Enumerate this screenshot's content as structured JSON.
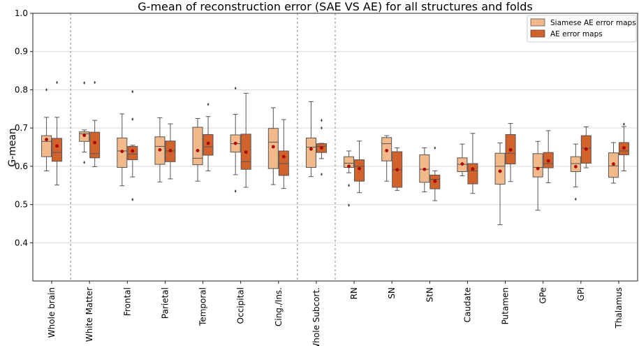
{
  "chart_data": {
    "type": "box",
    "title": "G-mean of reconstruction error (SAE VS AE) for all structures and folds",
    "xlabel": "",
    "ylabel": "G-mean",
    "ylim": [
      0.3,
      1.0
    ],
    "yticks": [
      0.4,
      0.5,
      0.6,
      0.7,
      0.8,
      0.9,
      1.0
    ],
    "grid": "horizontal",
    "legend_position": "top-right",
    "categories": [
      "Whole brain",
      "White Matter",
      "Frontal",
      "Parietal",
      "Temporal",
      "Occipital",
      "Cing./Ins.",
      "Whole Subcort.",
      "RN",
      "SN",
      "StN",
      "Caudate",
      "Putamen",
      "GPe",
      "GPi",
      "Thalamus"
    ],
    "group_separators_after": [
      0,
      6,
      7
    ],
    "series": [
      {
        "name": "Siamese AE error maps",
        "color": "#f2b98a",
        "boxes": [
          {
            "whislo": 0.588,
            "q1": 0.625,
            "med": 0.665,
            "q3": 0.68,
            "whishi": 0.728,
            "mean": 0.67,
            "fliers": [
              0.8
            ]
          },
          {
            "whislo": 0.637,
            "q1": 0.665,
            "med": 0.685,
            "q3": 0.69,
            "whishi": 0.695,
            "mean": 0.681,
            "fliers": [
              0.818,
              0.61
            ]
          },
          {
            "whislo": 0.549,
            "q1": 0.597,
            "med": 0.64,
            "q3": 0.674,
            "whishi": 0.737,
            "mean": 0.639,
            "fliers": []
          },
          {
            "whislo": 0.559,
            "q1": 0.605,
            "med": 0.652,
            "q3": 0.677,
            "whishi": 0.727,
            "mean": 0.643,
            "fliers": []
          },
          {
            "whislo": 0.561,
            "q1": 0.604,
            "med": 0.621,
            "q3": 0.702,
            "whishi": 0.725,
            "mean": 0.641,
            "fliers": []
          },
          {
            "whislo": 0.578,
            "q1": 0.637,
            "med": 0.659,
            "q3": 0.682,
            "whishi": 0.736,
            "mean": 0.66,
            "fliers": [
              0.804,
              0.535
            ]
          },
          {
            "whislo": 0.552,
            "q1": 0.594,
            "med": 0.663,
            "q3": 0.699,
            "whishi": 0.753,
            "mean": 0.651,
            "fliers": []
          },
          {
            "whislo": 0.573,
            "q1": 0.597,
            "med": 0.65,
            "q3": 0.674,
            "whishi": 0.769,
            "mean": 0.645,
            "fliers": []
          },
          {
            "whislo": 0.583,
            "q1": 0.597,
            "med": 0.608,
            "q3": 0.625,
            "whishi": 0.64,
            "mean": 0.6,
            "fliers": [
              0.55,
              0.498
            ]
          },
          {
            "whislo": 0.561,
            "q1": 0.614,
            "med": 0.659,
            "q3": 0.675,
            "whishi": 0.68,
            "mean": 0.641,
            "fliers": []
          },
          {
            "whislo": 0.533,
            "q1": 0.558,
            "med": 0.592,
            "q3": 0.63,
            "whishi": 0.648,
            "mean": 0.592,
            "fliers": []
          },
          {
            "whislo": 0.575,
            "q1": 0.586,
            "med": 0.605,
            "q3": 0.622,
            "whishi": 0.658,
            "mean": 0.606,
            "fliers": []
          },
          {
            "whislo": 0.447,
            "q1": 0.553,
            "med": 0.6,
            "q3": 0.634,
            "whishi": 0.661,
            "mean": 0.587,
            "fliers": []
          },
          {
            "whislo": 0.485,
            "q1": 0.572,
            "med": 0.597,
            "q3": 0.633,
            "whishi": 0.665,
            "mean": 0.594,
            "fliers": []
          },
          {
            "whislo": 0.546,
            "q1": 0.586,
            "med": 0.607,
            "q3": 0.625,
            "whishi": 0.658,
            "mean": 0.599,
            "fliers": [
              0.514
            ]
          },
          {
            "whislo": 0.556,
            "q1": 0.571,
            "med": 0.601,
            "q3": 0.635,
            "whishi": 0.662,
            "mean": 0.606,
            "fliers": []
          }
        ]
      },
      {
        "name": "AE error maps",
        "color": "#d2622c",
        "boxes": [
          {
            "whislo": 0.551,
            "q1": 0.613,
            "med": 0.636,
            "q3": 0.673,
            "whishi": 0.728,
            "mean": 0.653,
            "fliers": [
              0.819
            ]
          },
          {
            "whislo": 0.599,
            "q1": 0.622,
            "med": 0.633,
            "q3": 0.689,
            "whishi": 0.72,
            "mean": 0.662,
            "fliers": [
              0.819
            ]
          },
          {
            "whislo": 0.572,
            "q1": 0.617,
            "med": 0.632,
            "q3": 0.652,
            "whishi": 0.655,
            "mean": 0.64,
            "fliers": [
              0.795,
              0.723,
              0.513
            ]
          },
          {
            "whislo": 0.567,
            "q1": 0.612,
            "med": 0.64,
            "q3": 0.666,
            "whishi": 0.711,
            "mean": 0.641,
            "fliers": []
          },
          {
            "whislo": 0.588,
            "q1": 0.629,
            "med": 0.651,
            "q3": 0.683,
            "whishi": 0.73,
            "mean": 0.66,
            "fliers": [
              0.762
            ]
          },
          {
            "whislo": 0.545,
            "q1": 0.592,
            "med": 0.612,
            "q3": 0.684,
            "whishi": 0.791,
            "mean": 0.637,
            "fliers": []
          },
          {
            "whislo": 0.542,
            "q1": 0.576,
            "med": 0.607,
            "q3": 0.64,
            "whishi": 0.722,
            "mean": 0.625,
            "fliers": []
          },
          {
            "whislo": 0.62,
            "q1": 0.636,
            "med": 0.652,
            "q3": 0.659,
            "whishi": 0.66,
            "mean": 0.648,
            "fliers": [
              0.72,
              0.7,
              0.579
            ]
          },
          {
            "whislo": 0.531,
            "q1": 0.561,
            "med": 0.6,
            "q3": 0.617,
            "whishi": 0.666,
            "mean": 0.594,
            "fliers": []
          },
          {
            "whislo": 0.537,
            "q1": 0.545,
            "med": 0.591,
            "q3": 0.638,
            "whishi": 0.648,
            "mean": 0.591,
            "fliers": []
          },
          {
            "whislo": 0.51,
            "q1": 0.541,
            "med": 0.566,
            "q3": 0.577,
            "whishi": 0.588,
            "mean": 0.561,
            "fliers": [
              0.648
            ]
          },
          {
            "whislo": 0.529,
            "q1": 0.554,
            "med": 0.588,
            "q3": 0.607,
            "whishi": 0.686,
            "mean": 0.593,
            "fliers": []
          },
          {
            "whislo": 0.56,
            "q1": 0.606,
            "med": 0.634,
            "q3": 0.683,
            "whishi": 0.712,
            "mean": 0.643,
            "fliers": []
          },
          {
            "whislo": 0.557,
            "q1": 0.596,
            "med": 0.607,
            "q3": 0.636,
            "whishi": 0.693,
            "mean": 0.614,
            "fliers": []
          },
          {
            "whislo": 0.596,
            "q1": 0.608,
            "med": 0.647,
            "q3": 0.68,
            "whishi": 0.703,
            "mean": 0.645,
            "fliers": []
          },
          {
            "whislo": 0.588,
            "q1": 0.63,
            "med": 0.64,
            "q3": 0.662,
            "whishi": 0.704,
            "mean": 0.648,
            "fliers": [
              0.71
            ]
          }
        ]
      }
    ]
  }
}
